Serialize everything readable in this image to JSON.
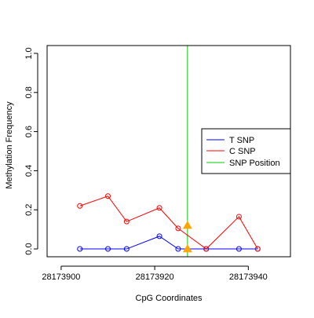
{
  "chart_data": {
    "type": "line",
    "title": "",
    "xlabel": "CpG Coordinates",
    "ylabel": "Methylation Frequency",
    "xlim": [
      28173897,
      28173949
    ],
    "ylim": [
      -0.04,
      1.04
    ],
    "x_ticks": [
      28173900,
      28173920,
      28173940
    ],
    "x_tick_labels": [
      "28173900",
      "28173920",
      "28173940"
    ],
    "y_ticks": [
      0.0,
      0.2,
      0.4,
      0.6,
      0.8,
      1.0
    ],
    "y_tick_labels": [
      "0.0",
      "0.2",
      "0.4",
      "0.6",
      "0.8",
      "1.0"
    ],
    "grid": false,
    "legend_position": "right",
    "series": [
      {
        "name": "T SNP",
        "color": "#0000ff",
        "marker": "open-circle",
        "points": [
          {
            "x": 28173904,
            "y": 0.0
          },
          {
            "x": 28173910,
            "y": 0.0
          },
          {
            "x": 28173914,
            "y": 0.0
          },
          {
            "x": 28173921,
            "y": 0.065
          },
          {
            "x": 28173925,
            "y": 0.0
          },
          {
            "x": 28173931,
            "y": 0.0
          },
          {
            "x": 28173938,
            "y": 0.0
          },
          {
            "x": 28173942,
            "y": 0.0
          }
        ]
      },
      {
        "name": "C SNP",
        "color": "#ff0000",
        "marker": "open-circle",
        "points": [
          {
            "x": 28173904,
            "y": 0.22
          },
          {
            "x": 28173910,
            "y": 0.27
          },
          {
            "x": 28173914,
            "y": 0.14
          },
          {
            "x": 28173921,
            "y": 0.21
          },
          {
            "x": 28173925,
            "y": 0.105
          },
          {
            "x": 28173931,
            "y": 0.0
          },
          {
            "x": 28173938,
            "y": 0.165
          },
          {
            "x": 28173942,
            "y": 0.0
          }
        ]
      },
      {
        "name": "SNP Position",
        "color": "#00cc00",
        "type": "vertical-line",
        "x": 28173927
      }
    ],
    "snp_markers": {
      "color": "#ffa500",
      "shape": "filled-triangle",
      "points": [
        {
          "x": 28173927,
          "y": 0.12
        },
        {
          "x": 28173927,
          "y": 0.0
        }
      ]
    }
  }
}
